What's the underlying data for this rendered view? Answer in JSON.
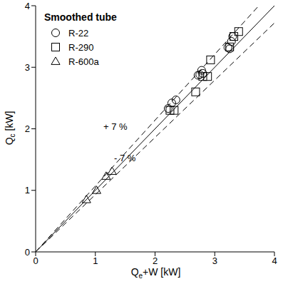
{
  "chart_data": {
    "type": "scatter",
    "title": "Smoothed tube",
    "x_label": "Qe+W [kW]",
    "y_label": "Qc [kW]",
    "xlim": [
      0,
      4
    ],
    "ylim": [
      0,
      4
    ],
    "xticks": [
      0,
      1,
      2,
      3,
      4
    ],
    "yticks": [
      0,
      1,
      2,
      3,
      4
    ],
    "legend": "upper left",
    "series": [
      {
        "name": "R-22",
        "color": "#000000",
        "marker": "circle",
        "x": [
          2.22,
          2.28,
          2.35,
          2.72,
          2.75,
          2.78,
          2.8,
          3.22,
          3.25,
          3.28,
          3.3
        ],
        "values": [
          2.33,
          2.42,
          2.47,
          2.87,
          2.88,
          2.95,
          2.9,
          3.32,
          3.3,
          3.42,
          3.5
        ]
      },
      {
        "name": "R-290",
        "color": "#000000",
        "marker": "square",
        "x": [
          2.25,
          2.32,
          2.68,
          2.8,
          2.88,
          2.93,
          3.25,
          3.32,
          3.4
        ],
        "values": [
          2.3,
          2.3,
          2.6,
          2.85,
          2.85,
          3.12,
          3.33,
          3.5,
          3.58
        ]
      },
      {
        "name": "R-600a",
        "color": "#000000",
        "marker": "triangle",
        "x": [
          0.85,
          1.02,
          1.18,
          1.28
        ],
        "values": [
          0.85,
          1.0,
          1.23,
          1.31
        ]
      }
    ],
    "reference_lines": [
      {
        "slope": 1,
        "line_style": "solid",
        "color": "#000000"
      },
      {
        "slope": 1.07,
        "line_style": "dashed",
        "color": "#000000",
        "label": "+ 7 %"
      },
      {
        "slope": 0.93,
        "line_style": "dashed",
        "color": "#000000",
        "label": "- 7 %"
      }
    ]
  }
}
